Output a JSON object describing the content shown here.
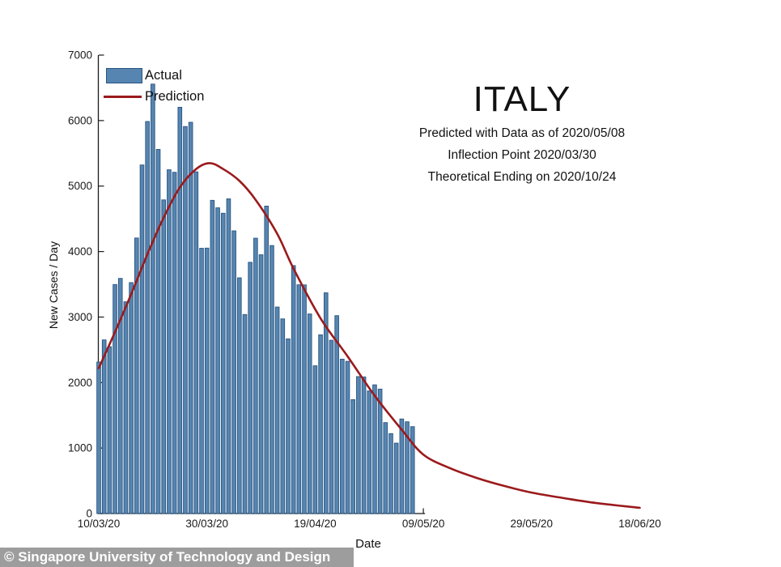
{
  "header": {
    "title": "ITALY",
    "subtitles": [
      "Predicted with Data as of 2020/05/08",
      "Inflection Point 2020/03/30",
      "Theoretical Ending on 2020/10/24"
    ]
  },
  "legend": {
    "actual": "Actual",
    "prediction": "Prediction"
  },
  "axes": {
    "xlabel": "Date",
    "ylabel": "New Cases / Day"
  },
  "footer": {
    "text": "© Singapore University of Technology and Design"
  },
  "colors": {
    "bar_fill": "#5685B1",
    "bar_edge": "#2A5580",
    "prediction_line": "#9B1A1C",
    "axis": "#1a1a1a",
    "tick_label": "#1a1a1a",
    "footer_bg": "#9D9D9D",
    "footer_text": "#FFFFFF"
  },
  "chart_data": {
    "type": "bar",
    "title": "ITALY",
    "subtitle_lines": [
      "Predicted with Data as of 2020/05/08",
      "Inflection Point 2020/03/30",
      "Theoretical Ending on 2020/10/24"
    ],
    "xlabel": "Date",
    "ylabel": "New Cases / Day",
    "ylim": [
      0,
      7000
    ],
    "y_ticks": [
      0,
      1000,
      2000,
      3000,
      4000,
      5000,
      6000,
      7000
    ],
    "x_ticks": [
      {
        "label": "10/03/20",
        "day": 0
      },
      {
        "label": "30/03/20",
        "day": 20
      },
      {
        "label": "19/04/20",
        "day": 40
      },
      {
        "label": "09/05/20",
        "day": 60
      },
      {
        "label": "29/05/20",
        "day": 80
      },
      {
        "label": "18/06/20",
        "day": 100
      }
    ],
    "x_axis_line_end_day": 60,
    "grid": false,
    "legend_position": "top-left",
    "series": [
      {
        "name": "Actual",
        "kind": "bar",
        "start_label": "10/03/20",
        "values": [
          2313,
          2651,
          2547,
          3497,
          3590,
          3233,
          3526,
          4207,
          5322,
          5986,
          6557,
          5560,
          4789,
          5249,
          5210,
          6203,
          5909,
          5974,
          5217,
          4050,
          4053,
          4782,
          4668,
          4585,
          4805,
          4316,
          3599,
          3039,
          3836,
          4204,
          3951,
          4694,
          4092,
          3153,
          2972,
          2667,
          3786,
          3493,
          3491,
          3047,
          2256,
          2729,
          3370,
          2646,
          3021,
          2357,
          2324,
          1739,
          2091,
          2086,
          1872,
          1965,
          1900,
          1389,
          1221,
          1075,
          1444,
          1401,
          1327
        ]
      },
      {
        "name": "Prediction",
        "kind": "line",
        "points": [
          [
            0,
            2220
          ],
          [
            3,
            2770
          ],
          [
            6,
            3350
          ],
          [
            9,
            3960
          ],
          [
            12,
            4520
          ],
          [
            15,
            4980
          ],
          [
            18,
            5260
          ],
          [
            20.5,
            5350
          ],
          [
            23,
            5260
          ],
          [
            26,
            5080
          ],
          [
            29,
            4790
          ],
          [
            33,
            4270
          ],
          [
            36,
            3740
          ],
          [
            41,
            2980
          ],
          [
            46,
            2400
          ],
          [
            51,
            1800
          ],
          [
            56,
            1280
          ],
          [
            60,
            900
          ],
          [
            65,
            690
          ],
          [
            70,
            540
          ],
          [
            75,
            420
          ],
          [
            80,
            320
          ],
          [
            86,
            235
          ],
          [
            92,
            160
          ],
          [
            100,
            88
          ]
        ]
      }
    ]
  }
}
